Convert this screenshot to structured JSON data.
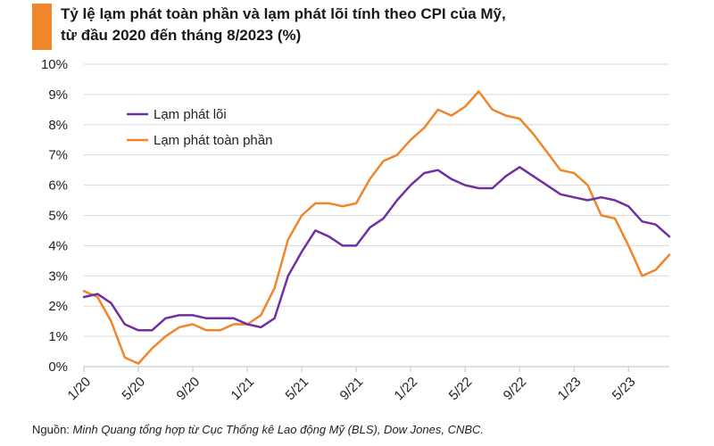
{
  "header": {
    "title_line1": "Tỷ lệ lạm phát toàn phần và lạm phát lõi tính theo CPI của Mỹ,",
    "title_line2": "từ đầu 2020 đến tháng 8/2023 (%)"
  },
  "footer": {
    "source_label": "Nguồn: ",
    "source_text": "Minh Quang tổng hợp từ Cục Thống kê Lao động Mỹ (BLS), Dow Jones, CNBC."
  },
  "colors": {
    "accent": "#F0862B",
    "core": "#7030A0",
    "headline": "#F0862B",
    "grid": "#d9d9d9",
    "axis": "#bfbfbf"
  },
  "chart_data": {
    "type": "line",
    "title": "Tỷ lệ lạm phát toàn phần và lạm phát lõi tính theo CPI của Mỹ, từ đầu 2020 đến tháng 8/2023 (%)",
    "ylim": [
      0,
      10
    ],
    "y_ticks": [
      "0%",
      "1%",
      "2%",
      "3%",
      "4%",
      "5%",
      "6%",
      "7%",
      "8%",
      "9%",
      "10%"
    ],
    "x_ticks": [
      {
        "label": "1/20",
        "month": "2020-01"
      },
      {
        "label": "5/20",
        "month": "2020-05"
      },
      {
        "label": "9/20",
        "month": "2020-09"
      },
      {
        "label": "1/21",
        "month": "2021-01"
      },
      {
        "label": "5/21",
        "month": "2021-05"
      },
      {
        "label": "9/21",
        "month": "2021-09"
      },
      {
        "label": "1/22",
        "month": "2022-01"
      },
      {
        "label": "5/22",
        "month": "2022-05"
      },
      {
        "label": "9/22",
        "month": "2022-09"
      },
      {
        "label": "1/23",
        "month": "2023-01"
      },
      {
        "label": "5/23",
        "month": "2023-05"
      }
    ],
    "x": [
      "2020-01",
      "2020-02",
      "2020-03",
      "2020-04",
      "2020-05",
      "2020-06",
      "2020-07",
      "2020-08",
      "2020-09",
      "2020-10",
      "2020-11",
      "2020-12",
      "2021-01",
      "2021-02",
      "2021-03",
      "2021-04",
      "2021-05",
      "2021-06",
      "2021-07",
      "2021-08",
      "2021-09",
      "2021-10",
      "2021-11",
      "2021-12",
      "2022-01",
      "2022-02",
      "2022-03",
      "2022-04",
      "2022-05",
      "2022-06",
      "2022-07",
      "2022-08",
      "2022-09",
      "2022-10",
      "2022-11",
      "2022-12",
      "2023-01",
      "2023-02",
      "2023-03",
      "2023-04",
      "2023-05",
      "2023-06",
      "2023-07",
      "2023-08"
    ],
    "series": [
      {
        "name": "Lạm phát lõi",
        "color": "#7030A0",
        "values": [
          2.3,
          2.4,
          2.1,
          1.4,
          1.2,
          1.2,
          1.6,
          1.7,
          1.7,
          1.6,
          1.6,
          1.6,
          1.4,
          1.3,
          1.6,
          3.0,
          3.8,
          4.5,
          4.3,
          4.0,
          4.0,
          4.6,
          4.9,
          5.5,
          6.0,
          6.4,
          6.5,
          6.2,
          6.0,
          5.9,
          5.9,
          6.3,
          6.6,
          6.3,
          6.0,
          5.7,
          5.6,
          5.5,
          5.6,
          5.5,
          5.3,
          4.8,
          4.7,
          4.3
        ]
      },
      {
        "name": "Lạm phát toàn phần",
        "color": "#F0862B",
        "values": [
          2.5,
          2.3,
          1.5,
          0.3,
          0.1,
          0.6,
          1.0,
          1.3,
          1.4,
          1.2,
          1.2,
          1.4,
          1.4,
          1.7,
          2.6,
          4.2,
          5.0,
          5.4,
          5.4,
          5.3,
          5.4,
          6.2,
          6.8,
          7.0,
          7.5,
          7.9,
          8.5,
          8.3,
          8.6,
          9.1,
          8.5,
          8.3,
          8.2,
          7.7,
          7.1,
          6.5,
          6.4,
          6.0,
          5.0,
          4.9,
          4.0,
          3.0,
          3.2,
          3.7
        ]
      }
    ],
    "legend_position": "top-left",
    "grid": true
  }
}
